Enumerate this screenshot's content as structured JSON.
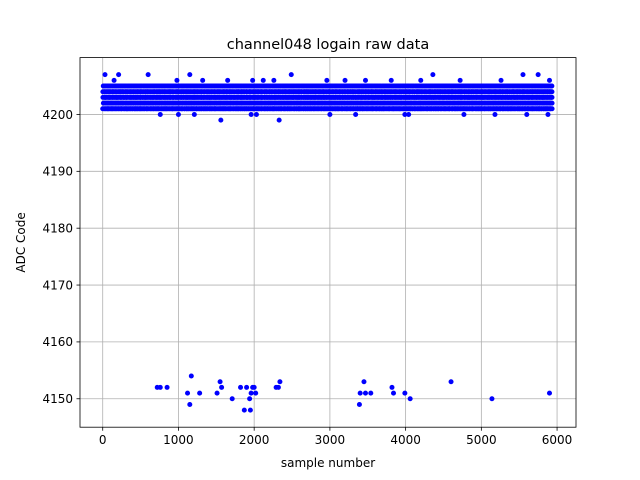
{
  "chart_data": {
    "type": "scatter",
    "title": "channel048 logain raw data",
    "xlabel": "sample number",
    "ylabel": "ADC Code",
    "xlim": [
      -300,
      6250
    ],
    "ylim": [
      4145,
      4210
    ],
    "x_ticks": [
      0,
      1000,
      2000,
      3000,
      4000,
      5000,
      6000
    ],
    "y_ticks": [
      4150,
      4160,
      4170,
      4180,
      4190,
      4200
    ],
    "grid": true,
    "marker_color": "#0000ff",
    "series": [
      {
        "band": {
          "x_start": 0,
          "x_end": 5930,
          "dense_min": 4201,
          "dense_max": 4205
        },
        "points": [
          [
            30,
            4207
          ],
          [
            150,
            4206
          ],
          [
            210,
            4207
          ],
          [
            600,
            4207
          ],
          [
            980,
            4206
          ],
          [
            1150,
            4207
          ],
          [
            1320,
            4206
          ],
          [
            1650,
            4206
          ],
          [
            1980,
            4206
          ],
          [
            2120,
            4206
          ],
          [
            2260,
            4206
          ],
          [
            2490,
            4207
          ],
          [
            2960,
            4206
          ],
          [
            3200,
            4206
          ],
          [
            3470,
            4206
          ],
          [
            3810,
            4206
          ],
          [
            4200,
            4206
          ],
          [
            4360,
            4207
          ],
          [
            4720,
            4206
          ],
          [
            5260,
            4206
          ],
          [
            5550,
            4207
          ],
          [
            5750,
            4207
          ],
          [
            5900,
            4206
          ],
          [
            760,
            4200
          ],
          [
            1000,
            4200
          ],
          [
            1210,
            4200
          ],
          [
            1560,
            4199
          ],
          [
            1960,
            4200
          ],
          [
            2030,
            4200
          ],
          [
            2330,
            4199
          ],
          [
            3000,
            4200
          ],
          [
            3340,
            4200
          ],
          [
            3990,
            4200
          ],
          [
            4040,
            4200
          ],
          [
            4770,
            4200
          ],
          [
            5180,
            4200
          ],
          [
            5600,
            4200
          ],
          [
            5880,
            4200
          ],
          [
            720,
            4152
          ],
          [
            760,
            4152
          ],
          [
            850,
            4152
          ],
          [
            1120,
            4151
          ],
          [
            1170,
            4154
          ],
          [
            1150,
            4149
          ],
          [
            1280,
            4151
          ],
          [
            1510,
            4151
          ],
          [
            1550,
            4153
          ],
          [
            1570,
            4152
          ],
          [
            1710,
            4150
          ],
          [
            1820,
            4152
          ],
          [
            1870,
            4148
          ],
          [
            1900,
            4152
          ],
          [
            1940,
            4150
          ],
          [
            1960,
            4151
          ],
          [
            1950,
            4148
          ],
          [
            1980,
            4152
          ],
          [
            2000,
            4152
          ],
          [
            2020,
            4151
          ],
          [
            2290,
            4152
          ],
          [
            2320,
            4152
          ],
          [
            2340,
            4153
          ],
          [
            3390,
            4149
          ],
          [
            3400,
            4151
          ],
          [
            3450,
            4153
          ],
          [
            3470,
            4151
          ],
          [
            3540,
            4151
          ],
          [
            3820,
            4152
          ],
          [
            3840,
            4151
          ],
          [
            3990,
            4151
          ],
          [
            4060,
            4150
          ],
          [
            4600,
            4153
          ],
          [
            5140,
            4150
          ],
          [
            5900,
            4151
          ]
        ]
      }
    ]
  }
}
